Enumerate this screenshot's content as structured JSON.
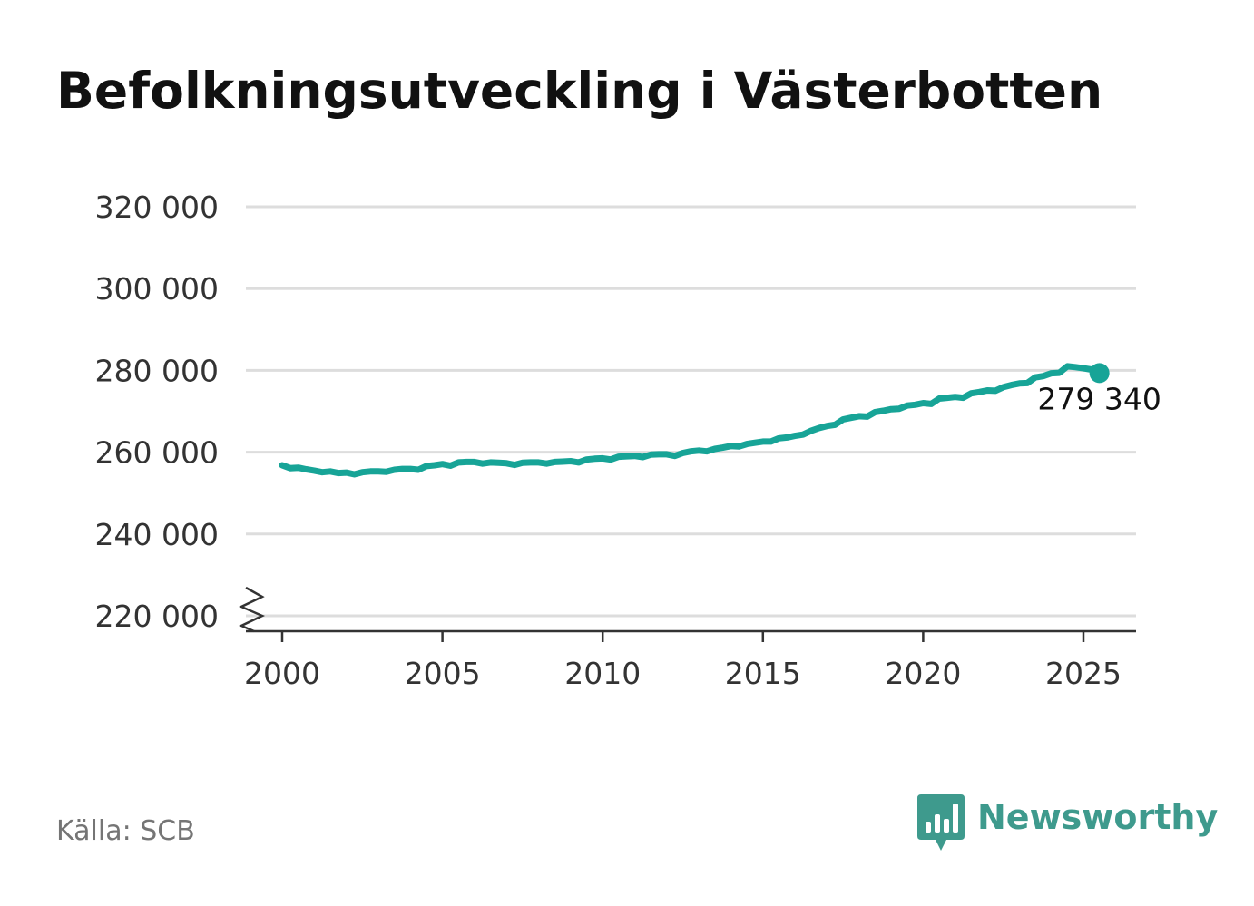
{
  "title": "Befolkningsutveckling i Västerbotten",
  "source": "Källa: SCB",
  "brand": {
    "name": "Newsworthy",
    "icon": "newsworthy-logo-icon",
    "color": "#3e9a8d"
  },
  "colors": {
    "line": "#17a497",
    "grid": "#dddddd",
    "axis": "#333333"
  },
  "chart_data": {
    "type": "line",
    "title": "Befolkningsutveckling i Västerbotten",
    "xlabel": "",
    "ylabel": "",
    "xlim": [
      1999.75,
      2026.6
    ],
    "ylim": [
      220000,
      320000
    ],
    "y_axis_break": true,
    "grid": true,
    "y_ticks": [
      220000,
      240000,
      260000,
      280000,
      300000,
      320000
    ],
    "y_tick_labels": [
      "220 000",
      "240 000",
      "260 000",
      "280 000",
      "300 000",
      "320 000"
    ],
    "x_ticks": [
      2000,
      2005,
      2010,
      2015,
      2020,
      2025
    ],
    "x_tick_labels": [
      "2000",
      "2005",
      "2010",
      "2015",
      "2020",
      "2025"
    ],
    "end_label": "279 340",
    "series": [
      {
        "x": [
          2000.0,
          2000.25,
          2000.5,
          2000.75,
          2001.0,
          2001.25,
          2001.5,
          2001.75,
          2002.0,
          2002.25,
          2002.5,
          2002.75,
          2003.0,
          2003.25,
          2003.5,
          2003.75,
          2004.0,
          2004.25,
          2004.5,
          2004.75,
          2005.0,
          2005.25,
          2005.5,
          2005.75,
          2006.0,
          2006.25,
          2006.5,
          2006.75,
          2007.0,
          2007.25,
          2007.5,
          2007.75,
          2008.0,
          2008.25,
          2008.5,
          2008.75,
          2009.0,
          2009.25,
          2009.5,
          2009.75,
          2010.0,
          2010.25,
          2010.5,
          2010.75,
          2011.0,
          2011.25,
          2011.5,
          2011.75,
          2012.0,
          2012.25,
          2012.5,
          2012.75,
          2013.0,
          2013.25,
          2013.5,
          2013.75,
          2014.0,
          2014.25,
          2014.5,
          2014.75,
          2015.0,
          2015.25,
          2015.5,
          2015.75,
          2016.0,
          2016.25,
          2016.5,
          2016.75,
          2017.0,
          2017.25,
          2017.5,
          2017.75,
          2018.0,
          2018.25,
          2018.5,
          2018.75,
          2019.0,
          2019.25,
          2019.5,
          2019.75,
          2020.0,
          2020.25,
          2020.5,
          2020.75,
          2021.0,
          2021.25,
          2021.5,
          2021.75,
          2022.0,
          2022.25,
          2022.5,
          2022.75,
          2023.0,
          2023.25,
          2023.5,
          2023.75,
          2024.0,
          2024.25,
          2024.5,
          2024.75,
          2025.0,
          2025.25,
          2025.5
        ],
        "values": [
          256800,
          256100,
          256200,
          255800,
          255500,
          255100,
          255300,
          254900,
          255000,
          254600,
          255100,
          255300,
          255300,
          255200,
          255700,
          255900,
          255900,
          255700,
          256600,
          256800,
          257100,
          256700,
          257500,
          257600,
          257600,
          257200,
          257500,
          257400,
          257300,
          256900,
          257400,
          257500,
          257500,
          257200,
          257600,
          257700,
          257800,
          257500,
          258200,
          258400,
          258500,
          258200,
          258900,
          259000,
          259100,
          258800,
          259400,
          259500,
          259500,
          259100,
          259800,
          260200,
          260400,
          260200,
          260800,
          261100,
          261500,
          261400,
          262000,
          262300,
          262600,
          262600,
          263400,
          263600,
          264000,
          264300,
          265200,
          265900,
          266400,
          266700,
          268000,
          268400,
          268800,
          268700,
          269800,
          270100,
          270500,
          270600,
          271400,
          271600,
          272000,
          271800,
          273100,
          273300,
          273500,
          273300,
          274400,
          274700,
          275100,
          275000,
          275900,
          276400,
          276800,
          276900,
          278300,
          278600,
          279300,
          279400,
          281000,
          280800,
          280500,
          280200,
          279340
        ]
      }
    ]
  }
}
